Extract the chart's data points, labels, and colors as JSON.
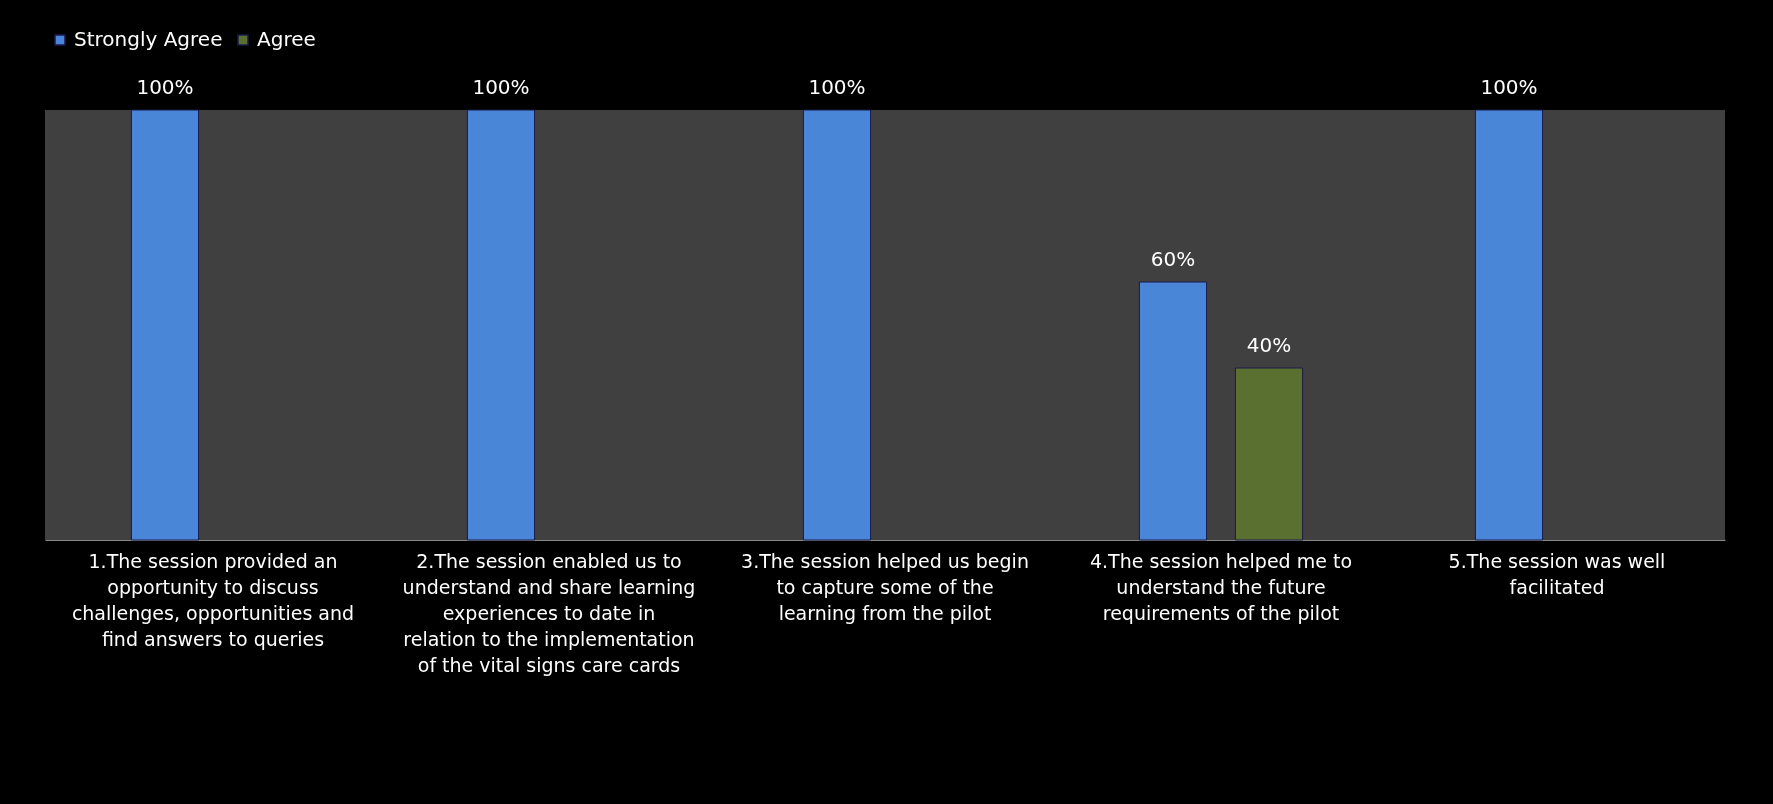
{
  "chart_data": {
    "type": "bar",
    "categories": [
      "1.The session provided an opportunity to discuss challenges, opportunities and find answers to queries",
      "2.The session enabled us to understand and share learning experiences to date in relation to the implementation of the vital signs care cards",
      "3.The session helped us begin to capture some of the learning from the pilot",
      "4.The session helped me to understand the future requirements of the pilot",
      "5.The session was well facilitated"
    ],
    "series": [
      {
        "name": "Strongly Agree",
        "color": "#4a86d8",
        "values": [
          100,
          100,
          100,
          60,
          100
        ],
        "value_labels": [
          "100%",
          "100%",
          "100%",
          "60%",
          "100%"
        ]
      },
      {
        "name": "Agree",
        "color": "#5a7030",
        "values": [
          null,
          null,
          null,
          40,
          null
        ],
        "value_labels": [
          null,
          null,
          null,
          "40%",
          null
        ]
      }
    ],
    "legend": "top",
    "grid": false
  }
}
